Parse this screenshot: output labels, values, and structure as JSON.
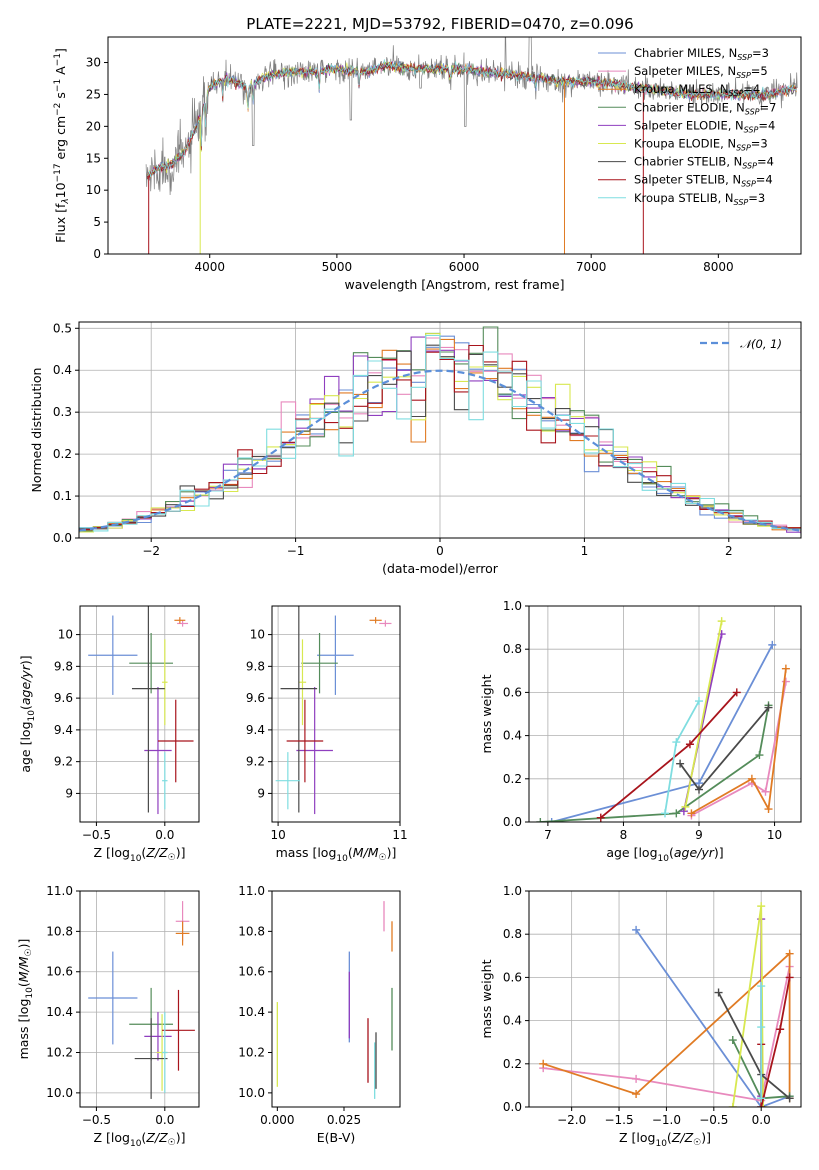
{
  "title": "PLATE=2221, MJD=53792, FIBERID=0470, z=0.096",
  "colors": {
    "chabrier_miles": "#6b8fd6",
    "salpeter_miles": "#e889bd",
    "kroupa_miles": "#e07b24",
    "chabrier_elodie": "#548c5a",
    "salpeter_elodie": "#8f3fbf",
    "kroupa_elodie": "#d8e850",
    "chabrier_stelib": "#4a4a4a",
    "salpeter_stelib": "#a8141c",
    "kroupa_stelib": "#7fdde0",
    "gaussian": "#5b8fd9"
  },
  "chart_data": [
    {
      "type": "line",
      "id": "spectrum",
      "xlabel": "wavelength [Angstrom, rest frame]",
      "ylabel": "Flux [f_λ10⁻¹⁷ erg cm⁻² s⁻¹ A⁻¹]",
      "xlim": [
        3200,
        8650
      ],
      "ylim": [
        0,
        34
      ],
      "xticks": [
        4000,
        5000,
        6000,
        7000,
        8000
      ],
      "yticks": [
        0,
        5,
        10,
        15,
        20,
        25,
        30
      ],
      "grid": false,
      "legend_position": "top-right",
      "legend": [
        {
          "key": "chabrier_miles",
          "label": "Chabrier MILES, N",
          "sub": "SSP",
          "tail": "=3"
        },
        {
          "key": "salpeter_miles",
          "label": "Salpeter MILES, N",
          "sub": "SSP",
          "tail": "=5"
        },
        {
          "key": "kroupa_miles",
          "label": "Kroupa MILES, N",
          "sub": "SSP",
          "tail": "=4"
        },
        {
          "key": "chabrier_elodie",
          "label": "Chabrier ELODIE, N",
          "sub": "SSP",
          "tail": "=7"
        },
        {
          "key": "salpeter_elodie",
          "label": "Salpeter ELODIE, N",
          "sub": "SSP",
          "tail": "=4"
        },
        {
          "key": "kroupa_elodie",
          "label": "Kroupa ELODIE, N",
          "sub": "SSP",
          "tail": "=3"
        },
        {
          "key": "chabrier_stelib",
          "label": "Chabrier STELIB, N",
          "sub": "SSP",
          "tail": "=4"
        },
        {
          "key": "salpeter_stelib",
          "label": "Salpeter STELIB, N",
          "sub": "SSP",
          "tail": "=4"
        },
        {
          "key": "kroupa_stelib",
          "label": "Kroupa STELIB, N",
          "sub": "SSP",
          "tail": "=3"
        }
      ],
      "continuum": [
        [
          3500,
          12
        ],
        [
          3600,
          13.5
        ],
        [
          3700,
          14
        ],
        [
          3800,
          16
        ],
        [
          3900,
          20
        ],
        [
          4000,
          26
        ],
        [
          4100,
          27.5
        ],
        [
          4200,
          27
        ],
        [
          4300,
          26
        ],
        [
          4400,
          27.5
        ],
        [
          4600,
          28.5
        ],
        [
          4800,
          28.5
        ],
        [
          5000,
          29
        ],
        [
          5200,
          28.5
        ],
        [
          5400,
          29.5
        ],
        [
          5600,
          29
        ],
        [
          5800,
          29
        ],
        [
          6000,
          29
        ],
        [
          6200,
          28.5
        ],
        [
          6400,
          28
        ],
        [
          6600,
          27.5
        ],
        [
          6800,
          27
        ],
        [
          7000,
          27
        ],
        [
          7200,
          26.5
        ],
        [
          7400,
          26
        ],
        [
          7600,
          25.5
        ],
        [
          7800,
          25
        ],
        [
          8000,
          25
        ],
        [
          8200,
          25
        ],
        [
          8400,
          25
        ],
        [
          8600,
          26
        ]
      ],
      "drops": [
        {
          "key": "salpeter_stelib",
          "x": 3520
        },
        {
          "key": "kroupa_elodie",
          "x": 3925
        },
        {
          "key": "kroupa_miles",
          "x": 6790
        },
        {
          "key": "salpeter_stelib",
          "x": 7410
        }
      ]
    },
    {
      "type": "bar",
      "id": "residuals",
      "xlabel": "(data-model)/error",
      "ylabel": "Normed distribution",
      "xlim": [
        -2.5,
        2.5
      ],
      "ylim": [
        0,
        0.515
      ],
      "xticks": [
        -2,
        -1,
        0,
        1,
        2
      ],
      "xticklabels": [
        "−2",
        "−1",
        "0",
        "1",
        "2"
      ],
      "yticks": [
        0.0,
        0.1,
        0.2,
        0.3,
        0.4,
        0.5
      ],
      "yticklabels": [
        "0.0",
        "0.1",
        "0.2",
        "0.3",
        "0.4",
        "0.5"
      ],
      "grid": true,
      "legend_position": "top-right",
      "gaussian_label": "𝒩(0, 1)",
      "bin_width": 0.1
    },
    {
      "type": "scatter",
      "id": "age_vs_Z",
      "xlabel": "Z [log₁₀(Z/Z☉)]",
      "ylabel": "age  [log₁₀(age/yr)]",
      "xlim": [
        -0.62,
        0.25
      ],
      "ylim": [
        8.82,
        10.18
      ],
      "xticks": [
        -0.5,
        0.0
      ],
      "xticklabels": [
        "−0.5",
        "0.0"
      ],
      "yticks": [
        9.0,
        9.2,
        9.4,
        9.6,
        9.8,
        10.0
      ],
      "grid": true,
      "points": [
        {
          "key": "chabrier_miles",
          "x": -0.38,
          "y": 9.87,
          "xerr": 0.18,
          "yerr": 0.25
        },
        {
          "key": "salpeter_miles",
          "x": 0.13,
          "y": 10.07,
          "xerr": 0.04,
          "yerr": 0.02
        },
        {
          "key": "kroupa_miles",
          "x": 0.11,
          "y": 10.09,
          "xerr": 0.04,
          "yerr": 0.02
        },
        {
          "key": "chabrier_elodie",
          "x": -0.1,
          "y": 9.82,
          "xerr": 0.16,
          "yerr": 0.19
        },
        {
          "key": "salpeter_elodie",
          "x": -0.05,
          "y": 9.27,
          "xerr": 0.1,
          "yerr": 0.4
        },
        {
          "key": "kroupa_elodie",
          "x": 0.0,
          "y": 9.7,
          "xerr": 0.02,
          "yerr": 0.27
        },
        {
          "key": "chabrier_stelib",
          "x": -0.12,
          "y": 9.66,
          "xerr": 0.12,
          "yerr": 0.78
        },
        {
          "key": "salpeter_stelib",
          "x": 0.08,
          "y": 9.33,
          "xerr": 0.13,
          "yerr": 0.26
        },
        {
          "key": "kroupa_stelib",
          "x": 0.0,
          "y": 9.08,
          "xerr": 0.02,
          "yerr": 0.18
        }
      ]
    },
    {
      "type": "scatter",
      "id": "age_vs_mass",
      "xlabel": "mass [log₁₀(M/M☉)]",
      "ylabel": "",
      "xlim": [
        9.95,
        11.0
      ],
      "ylim": [
        8.82,
        10.18
      ],
      "xticks": [
        10,
        11
      ],
      "xticklabels": [
        "10",
        "11"
      ],
      "yticks": [
        9.0,
        9.2,
        9.4,
        9.6,
        9.8,
        10.0
      ],
      "grid": true,
      "points": [
        {
          "key": "chabrier_miles",
          "x": 10.47,
          "y": 9.87,
          "xerr": 0.15,
          "yerr": 0.25
        },
        {
          "key": "salpeter_miles",
          "x": 10.88,
          "y": 10.07,
          "xerr": 0.05,
          "yerr": 0.02
        },
        {
          "key": "kroupa_miles",
          "x": 10.8,
          "y": 10.09,
          "xerr": 0.05,
          "yerr": 0.02
        },
        {
          "key": "chabrier_elodie",
          "x": 10.34,
          "y": 9.82,
          "xerr": 0.15,
          "yerr": 0.19
        },
        {
          "key": "salpeter_elodie",
          "x": 10.3,
          "y": 9.27,
          "xerr": 0.15,
          "yerr": 0.4
        },
        {
          "key": "kroupa_elodie",
          "x": 10.2,
          "y": 9.7,
          "xerr": 0.03,
          "yerr": 0.27
        },
        {
          "key": "chabrier_stelib",
          "x": 10.17,
          "y": 9.66,
          "xerr": 0.15,
          "yerr": 0.78
        },
        {
          "key": "salpeter_stelib",
          "x": 10.22,
          "y": 9.33,
          "xerr": 0.15,
          "yerr": 0.26
        },
        {
          "key": "kroupa_stelib",
          "x": 10.08,
          "y": 9.08,
          "xerr": 0.1,
          "yerr": 0.18
        }
      ]
    },
    {
      "type": "line",
      "id": "weight_vs_age",
      "xlabel": "age  [log₁₀(age/yr)]",
      "ylabel": "mass weight",
      "xlim": [
        6.75,
        10.35
      ],
      "ylim": [
        0,
        1
      ],
      "xticks": [
        7,
        8,
        9,
        10
      ],
      "yticks": [
        0.0,
        0.2,
        0.4,
        0.6,
        0.8,
        1.0
      ],
      "yticklabels": [
        "0.0",
        "0.2",
        "0.4",
        "0.6",
        "0.8",
        "1.0"
      ],
      "grid": true,
      "series": [
        {
          "key": "chabrier_miles",
          "points": [
            [
              7.05,
              0.0
            ],
            [
              9.0,
              0.18
            ],
            [
              9.97,
              0.82
            ]
          ]
        },
        {
          "key": "salpeter_miles",
          "points": [
            [
              8.9,
              0.03
            ],
            [
              9.7,
              0.18
            ],
            [
              9.88,
              0.14
            ],
            [
              10.15,
              0.65
            ]
          ]
        },
        {
          "key": "kroupa_miles",
          "points": [
            [
              8.9,
              0.04
            ],
            [
              9.7,
              0.2
            ],
            [
              9.92,
              0.06
            ],
            [
              10.15,
              0.71
            ]
          ]
        },
        {
          "key": "chabrier_elodie",
          "points": [
            [
              6.9,
              0.0
            ],
            [
              8.7,
              0.04
            ],
            [
              9.8,
              0.31
            ],
            [
              9.92,
              0.54
            ]
          ]
        },
        {
          "key": "salpeter_elodie",
          "points": [
            [
              8.8,
              0.05
            ],
            [
              9.3,
              0.87
            ]
          ]
        },
        {
          "key": "kroupa_elodie",
          "points": [
            [
              8.82,
              0.07
            ],
            [
              9.3,
              0.93
            ]
          ]
        },
        {
          "key": "chabrier_stelib",
          "points": [
            [
              8.75,
              0.27
            ],
            [
              9.0,
              0.15
            ],
            [
              9.92,
              0.53
            ]
          ]
        },
        {
          "key": "salpeter_stelib",
          "points": [
            [
              7.7,
              0.02
            ],
            [
              8.88,
              0.36
            ],
            [
              9.5,
              0.6
            ]
          ]
        },
        {
          "key": "kroupa_stelib",
          "points": [
            [
              8.55,
              0.04
            ],
            [
              8.7,
              0.37
            ],
            [
              9.0,
              0.56
            ]
          ]
        }
      ]
    },
    {
      "type": "scatter",
      "id": "mass_vs_Z",
      "xlabel": "Z [log₁₀(Z/Z☉)]",
      "ylabel": "mass [log₁₀(M/M☉)]",
      "xlim": [
        -0.62,
        0.25
      ],
      "ylim": [
        9.93,
        11.0
      ],
      "xticks": [
        -0.5,
        0.0
      ],
      "xticklabels": [
        "−0.5",
        "0.0"
      ],
      "yticks": [
        10.0,
        10.2,
        10.4,
        10.6,
        10.8,
        11.0
      ],
      "yticklabels": [
        "10.0",
        "10.2",
        "10.4",
        "10.6",
        "10.8",
        "11.0"
      ],
      "grid": true,
      "points": [
        {
          "key": "chabrier_miles",
          "x": -0.38,
          "y": 10.47,
          "xerr": 0.18,
          "yerr": 0.23
        },
        {
          "key": "salpeter_miles",
          "x": 0.13,
          "y": 10.85,
          "xerr": 0.05,
          "yerr": 0.1
        },
        {
          "key": "kroupa_miles",
          "x": 0.13,
          "y": 10.79,
          "xerr": 0.05,
          "yerr": 0.06
        },
        {
          "key": "chabrier_elodie",
          "x": -0.1,
          "y": 10.34,
          "xerr": 0.16,
          "yerr": 0.18
        },
        {
          "key": "salpeter_elodie",
          "x": -0.05,
          "y": 10.28,
          "xerr": 0.1,
          "yerr": 0.12
        },
        {
          "key": "kroupa_elodie",
          "x": -0.02,
          "y": 10.2,
          "xerr": 0.04,
          "yerr": 0.19
        },
        {
          "key": "chabrier_stelib",
          "x": -0.1,
          "y": 10.17,
          "xerr": 0.12,
          "yerr": 0.2
        },
        {
          "key": "salpeter_stelib",
          "x": 0.1,
          "y": 10.31,
          "xerr": 0.12,
          "yerr": 0.2
        },
        {
          "key": "kroupa_stelib",
          "x": 0.0,
          "y": 10.2,
          "xerr": 0.02,
          "yerr": 0.2
        }
      ]
    },
    {
      "type": "scatter",
      "id": "mass_vs_ebv",
      "xlabel": "E(B-V)",
      "ylabel": "",
      "xlim": [
        -0.002,
        0.046
      ],
      "ylim": [
        9.93,
        11.0
      ],
      "xticks": [
        0.0,
        0.025
      ],
      "xticklabels": [
        "0.000",
        "0.025"
      ],
      "yticks": [
        10.0,
        10.2,
        10.4,
        10.6,
        10.8,
        11.0
      ],
      "yticklabels": [
        "10.0",
        "10.2",
        "10.4",
        "10.6",
        "10.8",
        "11.0"
      ],
      "grid": false,
      "bars": [
        {
          "key": "kroupa_elodie",
          "x": 0.0,
          "y1": 10.03,
          "y2": 10.45
        },
        {
          "key": "chabrier_miles",
          "x": 0.027,
          "y1": 10.25,
          "y2": 10.7
        },
        {
          "key": "salpeter_elodie",
          "x": 0.027,
          "y1": 10.27,
          "y2": 10.6
        },
        {
          "key": "salpeter_stelib",
          "x": 0.034,
          "y1": 10.05,
          "y2": 10.37
        },
        {
          "key": "kroupa_stelib",
          "x": 0.0365,
          "y1": 9.97,
          "y2": 10.25
        },
        {
          "key": "chabrier_stelib",
          "x": 0.037,
          "y1": 10.02,
          "y2": 10.3
        },
        {
          "key": "salpeter_miles",
          "x": 0.04,
          "y1": 10.8,
          "y2": 10.95
        },
        {
          "key": "chabrier_elodie",
          "x": 0.043,
          "y1": 10.21,
          "y2": 10.52
        },
        {
          "key": "kroupa_miles",
          "x": 0.043,
          "y1": 10.7,
          "y2": 10.85
        }
      ]
    },
    {
      "type": "line",
      "id": "weight_vs_Z",
      "xlabel": "Z [log₁₀(Z/Z☉)]",
      "ylabel": "mass weight",
      "xlim": [
        -2.45,
        0.42
      ],
      "ylim": [
        0,
        1
      ],
      "xticks": [
        -2.0,
        -1.5,
        -1.0,
        -0.5,
        0.0
      ],
      "xticklabels": [
        "−2.0",
        "−1.5",
        "−1.0",
        "−0.5",
        "0.0"
      ],
      "yticks": [
        0.0,
        0.2,
        0.4,
        0.6,
        0.8,
        1.0
      ],
      "yticklabels": [
        "0.0",
        "0.2",
        "0.4",
        "0.6",
        "0.8",
        "1.0"
      ],
      "grid": true,
      "series": [
        {
          "key": "chabrier_miles",
          "points": [
            [
              -1.32,
              0.82
            ],
            [
              0.0,
              0.0
            ],
            [
              0.3,
              0.05
            ]
          ]
        },
        {
          "key": "salpeter_miles",
          "points": [
            [
              -2.3,
              0.18
            ],
            [
              -1.32,
              0.13
            ],
            [
              0.0,
              0.03
            ],
            [
              0.3,
              0.65
            ]
          ]
        },
        {
          "key": "kroupa_miles",
          "points": [
            [
              -2.3,
              0.2
            ],
            [
              -1.32,
              0.06
            ],
            [
              0.3,
              0.71
            ],
            [
              0.3,
              0.04
            ]
          ]
        },
        {
          "key": "chabrier_elodie",
          "points": [
            [
              -0.3,
              0.31
            ],
            [
              0.0,
              0.04
            ],
            [
              0.3,
              0.05
            ]
          ]
        },
        {
          "key": "salpeter_elodie",
          "points": [
            [
              0.0,
              0.87
            ],
            [
              0.0,
              0.05
            ]
          ]
        },
        {
          "key": "kroupa_elodie",
          "points": [
            [
              -0.3,
              0.0
            ],
            [
              0.0,
              0.93
            ],
            [
              0.02,
              0.0
            ]
          ]
        },
        {
          "key": "chabrier_stelib",
          "points": [
            [
              -0.45,
              0.53
            ],
            [
              0.0,
              0.15
            ],
            [
              0.3,
              0.04
            ]
          ]
        },
        {
          "key": "salpeter_stelib",
          "points": [
            [
              0.0,
              0.29
            ],
            [
              0.0,
              0.0
            ],
            [
              0.2,
              0.36
            ],
            [
              0.3,
              0.6
            ]
          ]
        },
        {
          "key": "kroupa_stelib",
          "points": [
            [
              0.0,
              0.56
            ],
            [
              0.0,
              0.37
            ],
            [
              0.0,
              0.04
            ]
          ]
        }
      ]
    }
  ]
}
